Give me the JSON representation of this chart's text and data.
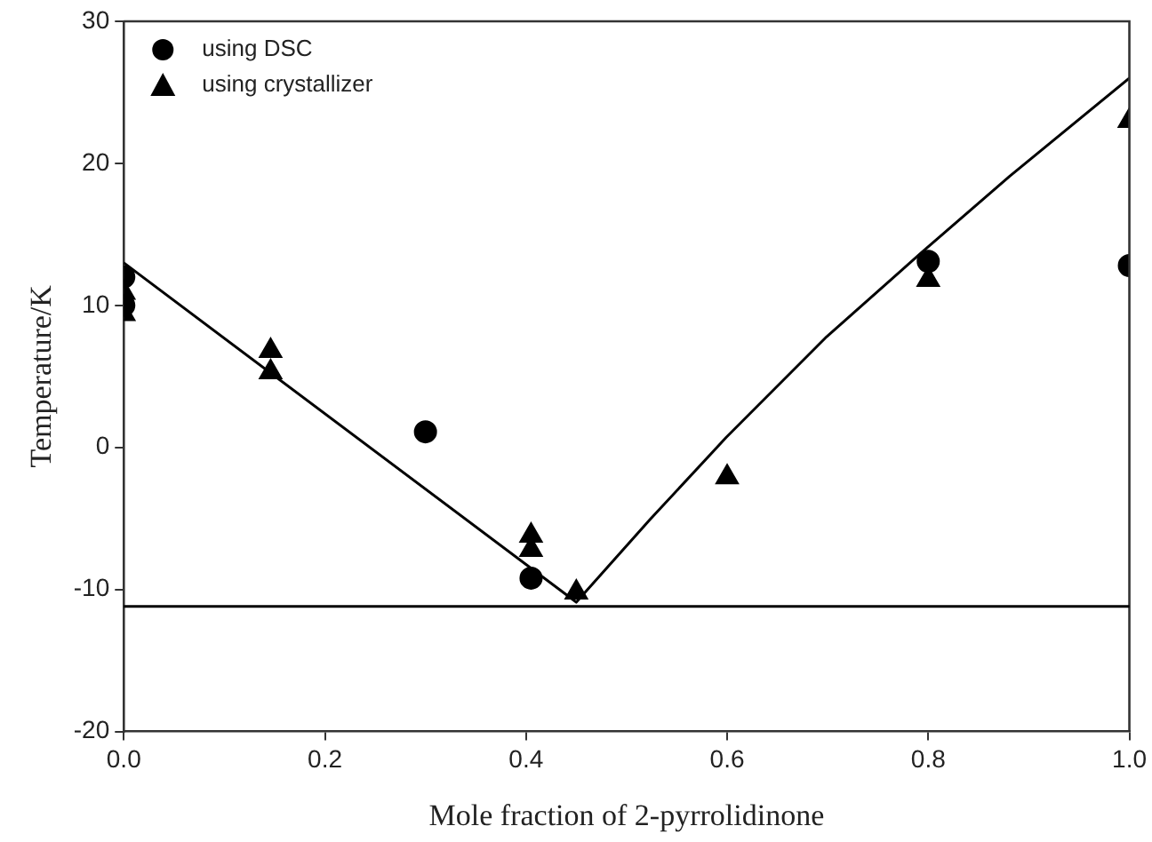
{
  "chart_data": {
    "type": "scatter",
    "xlabel": "Mole fraction of 2-pyrrolidinone",
    "ylabel": "Temperature/K",
    "xlim": [
      0,
      1
    ],
    "xticks": [
      {
        "value": 0,
        "label": "0.0"
      },
      {
        "value": 0.2,
        "label": "0.2"
      },
      {
        "value": 0.4,
        "label": "0.4"
      },
      {
        "value": 0.6,
        "label": "0.6"
      },
      {
        "value": 0.8,
        "label": "0.8"
      },
      {
        "value": 1,
        "label": "1.0"
      }
    ],
    "ylim": [
      -20,
      30
    ],
    "yticks": [
      -20,
      -10,
      0,
      10,
      20,
      30
    ],
    "grid": false,
    "legend": "top left",
    "ref_lines": [
      {
        "axis": "y",
        "value": -11.2,
        "color": "#000000"
      }
    ],
    "series": [
      {
        "name": "using DSC",
        "marker": "circle",
        "color": "#000000",
        "x": [
          0,
          0,
          0.3,
          0.405,
          0.8,
          1.0
        ],
        "values": [
          12.0,
          10.0,
          1.1,
          -9.2,
          13.1,
          12.8
        ]
      },
      {
        "name": "using crystallizer",
        "marker": "triangle",
        "color": "#000000",
        "x": [
          0,
          0,
          0.146,
          0.146,
          0.405,
          0.405,
          0.45,
          0.6,
          0.8,
          1.0
        ],
        "values": [
          10.9,
          9.4,
          6.8,
          5.3,
          -6.2,
          -7.2,
          -10.2,
          -2.1,
          11.8,
          23.0
        ]
      },
      {
        "type": "line",
        "marker": "none",
        "color": "#000000",
        "x": [
          0,
          0.45,
          0.523,
          0.599,
          0.699,
          0.793,
          0.881,
          1.0
        ],
        "values": [
          13.0,
          -10.9,
          -5.1,
          0.7,
          7.8,
          13.7,
          19.1,
          26.0
        ]
      }
    ]
  }
}
